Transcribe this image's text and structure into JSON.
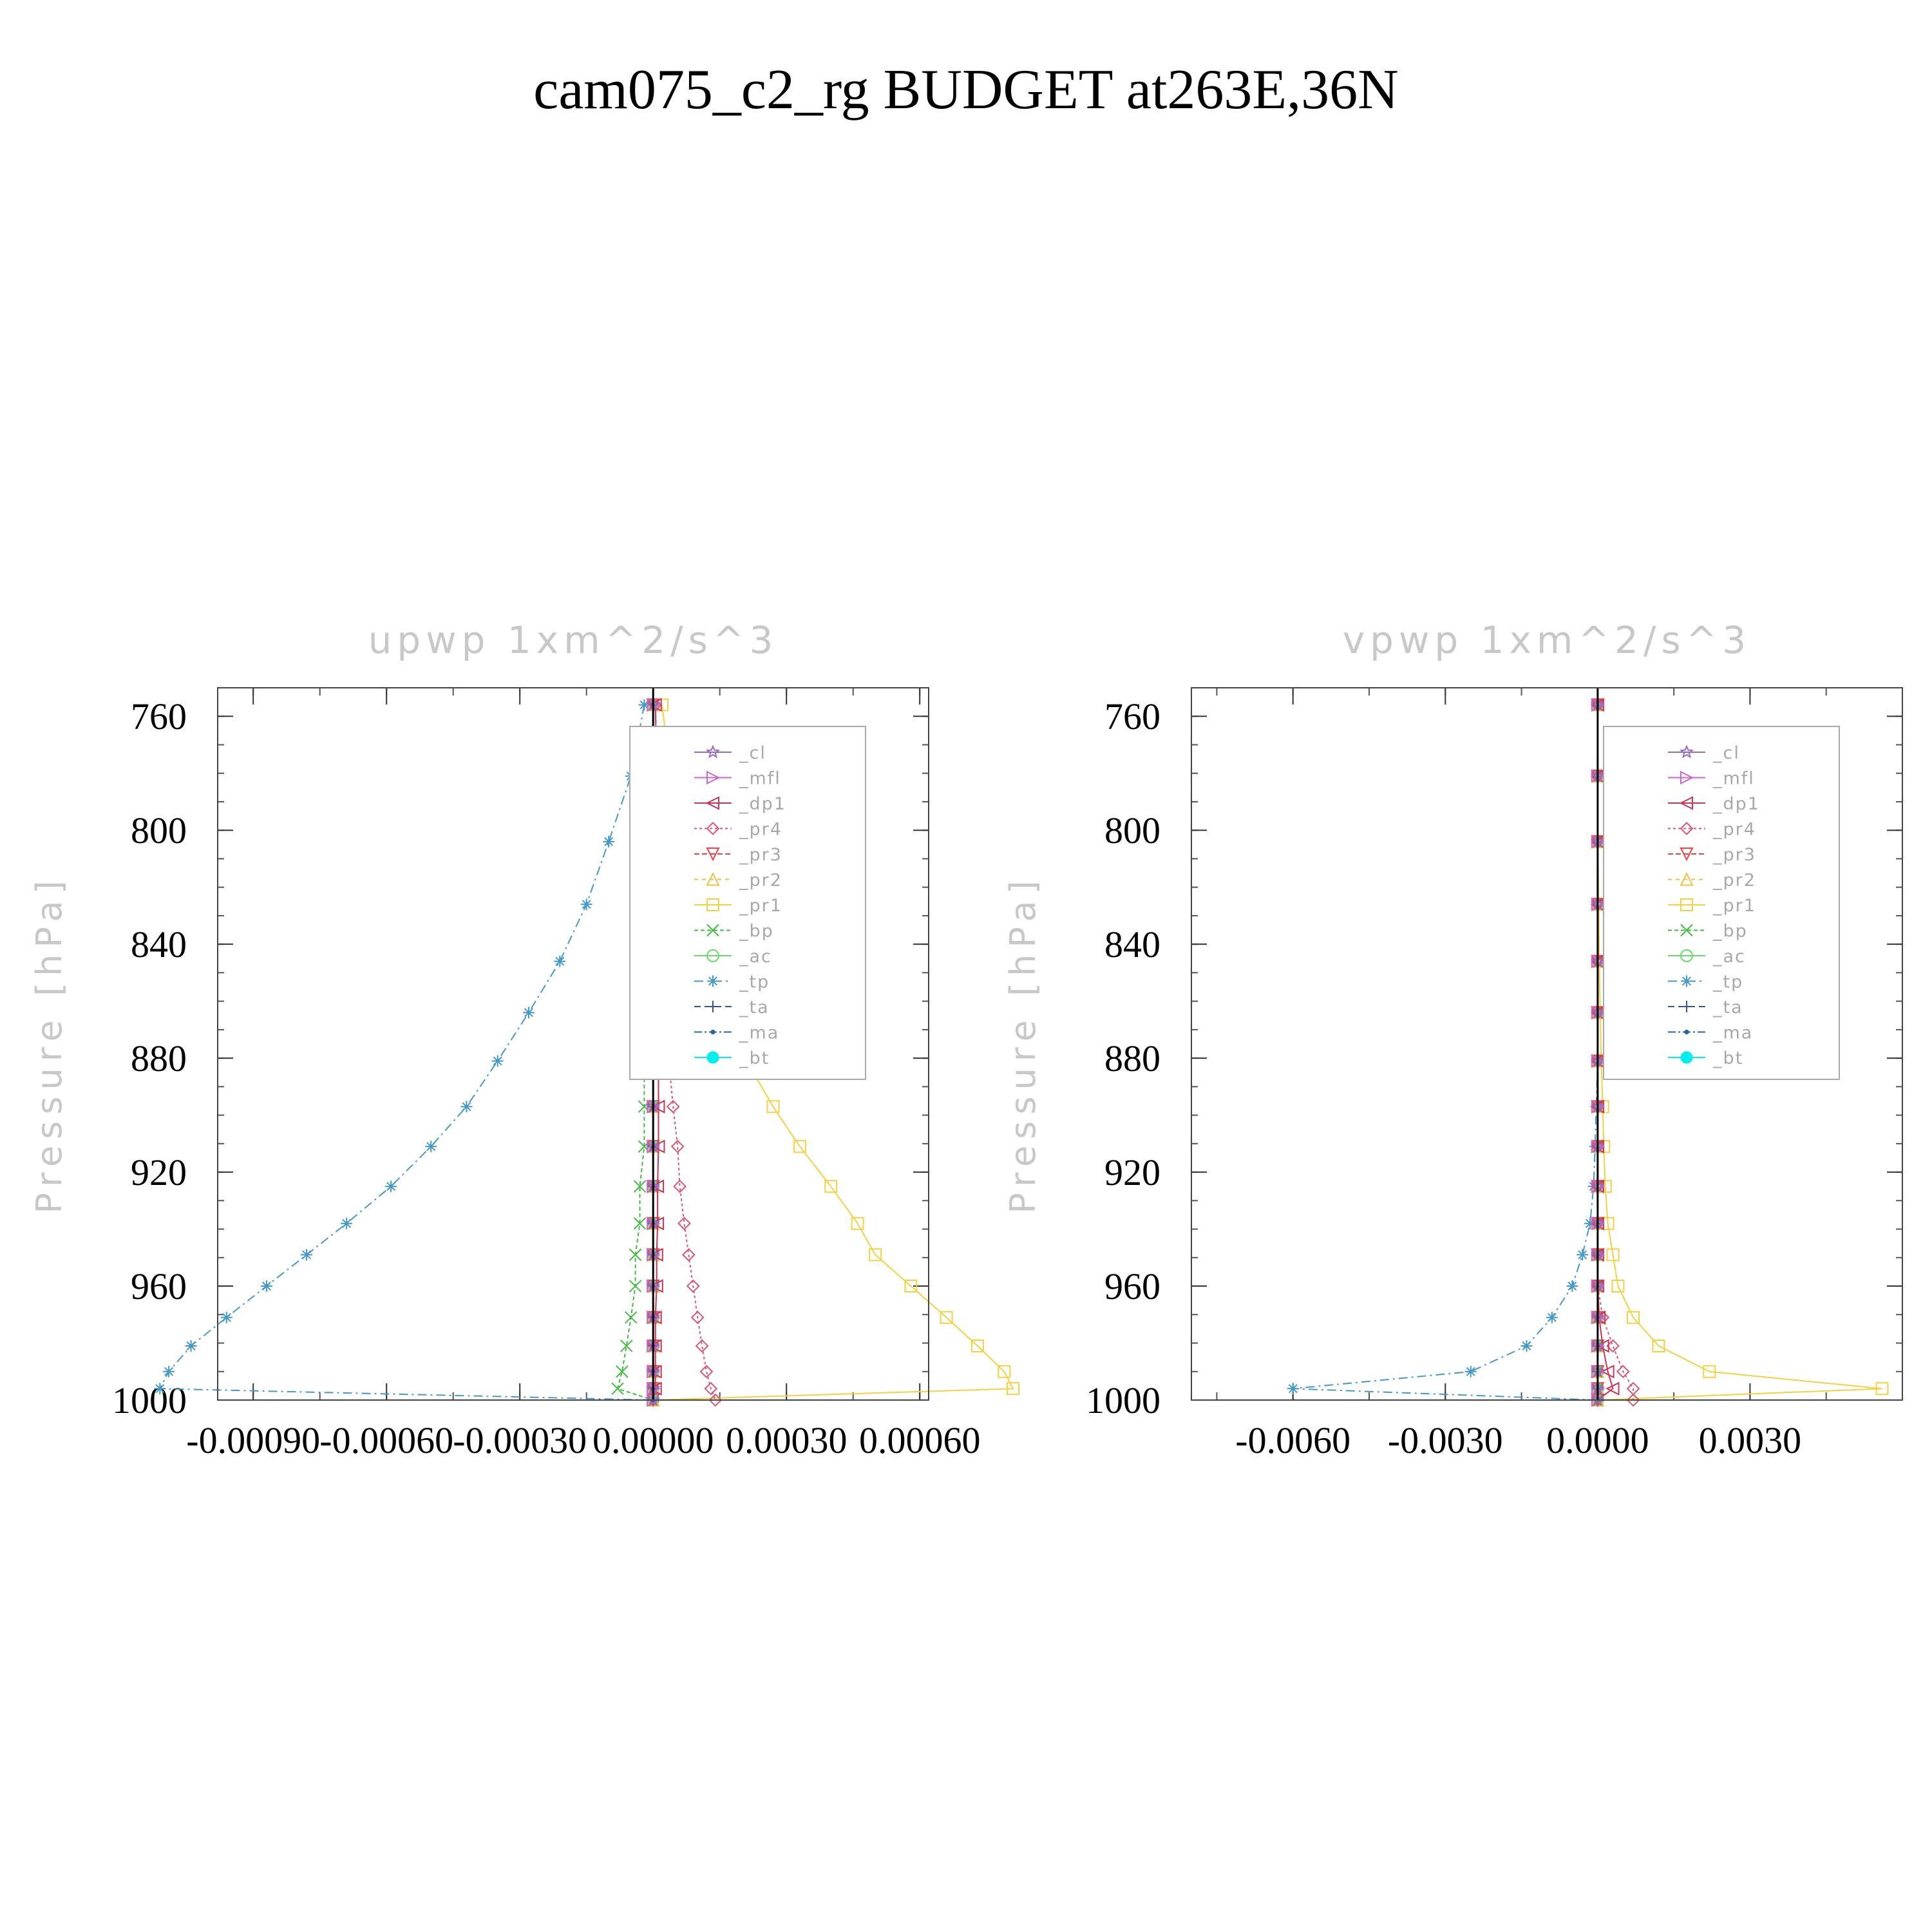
{
  "title": "cam075_c2_rg  BUDGET at263E,36N",
  "chart_data": [
    {
      "type": "line",
      "title": "upwp    1xm^2/s^3",
      "ylabel": "Pressure  [hPa]",
      "xlabel": "",
      "ylim": [
        750,
        1000
      ],
      "y_inverted": true,
      "xlim": [
        -0.00098,
        0.00062
      ],
      "xticks": [
        -0.0009,
        -0.0006,
        -0.0003,
        0.0,
        0.0003,
        0.0006
      ],
      "xtick_labels": [
        "-0.00090",
        "-0.00060",
        "-0.00030",
        "0.00000",
        "0.00030",
        "0.00060"
      ],
      "yticks": [
        760,
        800,
        840,
        880,
        920,
        960,
        1000
      ],
      "ytick_labels": [
        "760",
        "800",
        "840",
        "880",
        "920",
        "960",
        "1000"
      ],
      "grid": false,
      "legend_position": "top-right",
      "pressure_levels": [
        756,
        781,
        804,
        826,
        846,
        864,
        881,
        897,
        911,
        925,
        938,
        949,
        960,
        971,
        981,
        990,
        996,
        1000
      ],
      "series": [
        {
          "name": "_cl",
          "color": "#9966cc",
          "marker": "star",
          "dash": "",
          "values": [
            0,
            0,
            0,
            0,
            0,
            0,
            0,
            0,
            0,
            0,
            0,
            0,
            0,
            0,
            0,
            0,
            0,
            0
          ]
        },
        {
          "name": "_mfl",
          "color": "#cc66cc",
          "marker": "triangle-right",
          "dash": "",
          "values": [
            0,
            0,
            0,
            0,
            0,
            0,
            0,
            0,
            0,
            0,
            0,
            0,
            0,
            0,
            0,
            0,
            0,
            0
          ]
        },
        {
          "name": "_dp1",
          "color": "#cc3355",
          "marker": "triangle-left",
          "dash": "",
          "values": [
            5e-06,
            8e-06,
            1e-05,
            1e-05,
            1e-05,
            1.2e-05,
            1.2e-05,
            1.2e-05,
            1.2e-05,
            1e-05,
            1e-05,
            8e-06,
            8e-06,
            5e-06,
            5e-06,
            5e-06,
            5e-06,
            0.0
          ]
        },
        {
          "name": "_pr4",
          "color": "#dd5577",
          "marker": "diamond",
          "dash": "4,4",
          "values": [
            5e-06,
            1e-05,
            1.5e-05,
            2e-05,
            2.5e-05,
            3e-05,
            3.5e-05,
            4.5e-05,
            5.5e-05,
            6e-05,
            7e-05,
            8e-05,
            9e-05,
            0.0001,
            0.00011,
            0.00012,
            0.00013,
            0.00014
          ]
        },
        {
          "name": "_pr3",
          "color": "#ee4444",
          "marker": "triangle-down",
          "dash": "8,4",
          "values": [
            0,
            0,
            0,
            0,
            0,
            0,
            0,
            0,
            0,
            0,
            0,
            0,
            0,
            0,
            0,
            0,
            0,
            0
          ]
        },
        {
          "name": "_pr2",
          "color": "#f0c040",
          "marker": "triangle-up",
          "dash": "6,6",
          "values": [
            0,
            0,
            0,
            0,
            0,
            0,
            0,
            0,
            0,
            0,
            0,
            0,
            0,
            0,
            0,
            0,
            0,
            0
          ]
        },
        {
          "name": "_pr1",
          "color": "#f5d040",
          "marker": "square",
          "dash": "",
          "values": [
            2e-05,
            4e-05,
            6e-05,
            9e-05,
            0.00012,
            0.00016,
            0.00021,
            0.00027,
            0.00033,
            0.0004,
            0.00046,
            0.0005,
            0.00058,
            0.00066,
            0.00073,
            0.00079,
            0.00081,
            0.0
          ]
        },
        {
          "name": "_bp",
          "color": "#44bb44",
          "marker": "x",
          "dash": "6,4",
          "values": [
            0,
            -5e-06,
            -1e-05,
            -1e-05,
            -1.5e-05,
            -2e-05,
            -2e-05,
            -2e-05,
            -2e-05,
            -3e-05,
            -3e-05,
            -4e-05,
            -4e-05,
            -5e-05,
            -6e-05,
            -7e-05,
            -8e-05,
            0.0
          ]
        },
        {
          "name": "_ac",
          "color": "#66dd66",
          "marker": "circle",
          "dash": "",
          "values": [
            0,
            0,
            0,
            0,
            0,
            0,
            0,
            0,
            0,
            0,
            0,
            0,
            0,
            0,
            0,
            0,
            0,
            0
          ]
        },
        {
          "name": "_tp",
          "color": "#4499cc",
          "marker": "asterisk",
          "dash": "14,6,3,6",
          "values": [
            -2e-05,
            -5e-05,
            -0.0001,
            -0.00015,
            -0.00021,
            -0.00028,
            -0.00035,
            -0.00042,
            -0.0005,
            -0.00059,
            -0.00069,
            -0.00078,
            -0.00087,
            -0.00096,
            -0.00104,
            -0.00109,
            -0.00111,
            0.0
          ]
        },
        {
          "name": "_ta",
          "color": "#335588",
          "marker": "plus",
          "dash": "10,6",
          "values": [
            0,
            0,
            0,
            0,
            0,
            0,
            0,
            0,
            0,
            0,
            0,
            0,
            0,
            0,
            0,
            0,
            0,
            0
          ]
        },
        {
          "name": "_ma",
          "color": "#2266aa",
          "marker": "dot",
          "dash": "12,4,3,4",
          "values": [
            0,
            0,
            0,
            0,
            0,
            0,
            0,
            0,
            0,
            0,
            0,
            0,
            0,
            0,
            0,
            0,
            0,
            0
          ]
        },
        {
          "name": "_bt",
          "color": "#00eeee",
          "marker": "filled-circle",
          "dash": "",
          "values": [
            0,
            0,
            0,
            0,
            0,
            0,
            0,
            0,
            0,
            0,
            0,
            0,
            0,
            0,
            0,
            0,
            0,
            0
          ]
        }
      ]
    },
    {
      "type": "line",
      "title": "vpwp    1xm^2/s^3",
      "ylabel": "Pressure  [hPa]",
      "xlabel": "",
      "ylim": [
        750,
        1000
      ],
      "y_inverted": true,
      "xlim": [
        -0.008,
        0.006
      ],
      "xticks": [
        -0.006,
        -0.003,
        0.0,
        0.003
      ],
      "xtick_labels": [
        "-0.0060",
        "-0.0030",
        "0.0000",
        "0.0030"
      ],
      "yticks": [
        760,
        800,
        840,
        880,
        920,
        960,
        1000
      ],
      "ytick_labels": [
        "760",
        "800",
        "840",
        "880",
        "920",
        "960",
        "1000"
      ],
      "grid": false,
      "legend_position": "top-right",
      "pressure_levels": [
        756,
        781,
        804,
        826,
        846,
        864,
        881,
        897,
        911,
        925,
        938,
        949,
        960,
        971,
        981,
        990,
        996,
        1000
      ],
      "series": [
        {
          "name": "_cl",
          "color": "#9966cc",
          "marker": "star",
          "dash": "",
          "values": [
            0,
            0,
            0,
            0,
            0,
            0,
            0,
            0,
            0,
            0,
            0,
            0,
            0,
            0,
            0,
            0,
            0,
            0
          ]
        },
        {
          "name": "_mfl",
          "color": "#cc66cc",
          "marker": "triangle-right",
          "dash": "",
          "values": [
            0,
            0,
            0,
            0,
            0,
            0,
            0,
            0,
            0,
            0,
            0,
            0,
            0,
            0,
            0,
            0,
            0,
            0
          ]
        },
        {
          "name": "_dp1",
          "color": "#cc3355",
          "marker": "triangle-left",
          "dash": "",
          "values": [
            0,
            0,
            0,
            0,
            0,
            0,
            0,
            0,
            0,
            0,
            0,
            0,
            0,
            3e-05,
            0.0001,
            0.0002,
            0.0003,
            0.0
          ]
        },
        {
          "name": "_pr4",
          "color": "#dd5577",
          "marker": "diamond",
          "dash": "4,4",
          "values": [
            0,
            0,
            0,
            0,
            0,
            0,
            0,
            0,
            0,
            0,
            0,
            0,
            0,
            0.0001,
            0.0003,
            0.0005,
            0.0007,
            0.0007
          ]
        },
        {
          "name": "_pr3",
          "color": "#ee4444",
          "marker": "triangle-down",
          "dash": "8,4",
          "values": [
            0,
            0,
            0,
            0,
            0,
            0,
            0,
            0,
            0,
            0,
            0,
            0,
            0,
            0,
            0,
            0,
            0,
            0
          ]
        },
        {
          "name": "_pr2",
          "color": "#f0c040",
          "marker": "triangle-up",
          "dash": "6,6",
          "values": [
            0,
            0,
            0,
            0,
            0,
            0,
            0,
            0,
            0,
            0,
            0,
            0,
            0,
            0,
            0,
            0,
            0,
            0
          ]
        },
        {
          "name": "_pr1",
          "color": "#f5d040",
          "marker": "square",
          "dash": "",
          "values": [
            0,
            0,
            0,
            2e-05,
            3e-05,
            5e-05,
            7e-05,
            0.0001,
            0.00012,
            0.00015,
            0.0002,
            0.0003,
            0.0004,
            0.0007,
            0.0012,
            0.0022,
            0.0056,
            0.0
          ]
        },
        {
          "name": "_bp",
          "color": "#44bb44",
          "marker": "x",
          "dash": "6,4",
          "values": [
            0,
            0,
            0,
            0,
            0,
            0,
            0,
            0,
            0,
            0,
            0,
            0,
            0,
            0,
            0,
            0,
            0,
            0
          ]
        },
        {
          "name": "_ac",
          "color": "#66dd66",
          "marker": "circle",
          "dash": "",
          "values": [
            0,
            0,
            0,
            0,
            0,
            0,
            0,
            0,
            0,
            0,
            0,
            0,
            0,
            0,
            0,
            0,
            0,
            0
          ]
        },
        {
          "name": "_tp",
          "color": "#4499cc",
          "marker": "asterisk",
          "dash": "14,6,3,6",
          "values": [
            0,
            0,
            0,
            0,
            0,
            0,
            0,
            -3e-05,
            -5e-05,
            -8e-05,
            -0.00015,
            -0.0003,
            -0.0005,
            -0.0009,
            -0.0014,
            -0.0025,
            -0.006,
            0.0
          ]
        },
        {
          "name": "_ta",
          "color": "#335588",
          "marker": "plus",
          "dash": "10,6",
          "values": [
            0,
            0,
            0,
            0,
            0,
            0,
            0,
            0,
            0,
            0,
            0,
            0,
            0,
            0,
            0,
            0,
            0,
            0
          ]
        },
        {
          "name": "_ma",
          "color": "#2266aa",
          "marker": "dot",
          "dash": "12,4,3,4",
          "values": [
            0,
            0,
            0,
            0,
            0,
            0,
            0,
            0,
            0,
            0,
            0,
            0,
            0,
            0,
            0,
            0,
            0,
            0
          ]
        },
        {
          "name": "_bt",
          "color": "#00eeee",
          "marker": "filled-circle",
          "dash": "",
          "values": [
            0,
            0,
            0,
            0,
            0,
            0,
            0,
            0,
            0,
            0,
            0,
            0,
            0,
            0,
            0,
            0,
            0,
            0
          ]
        }
      ]
    }
  ]
}
